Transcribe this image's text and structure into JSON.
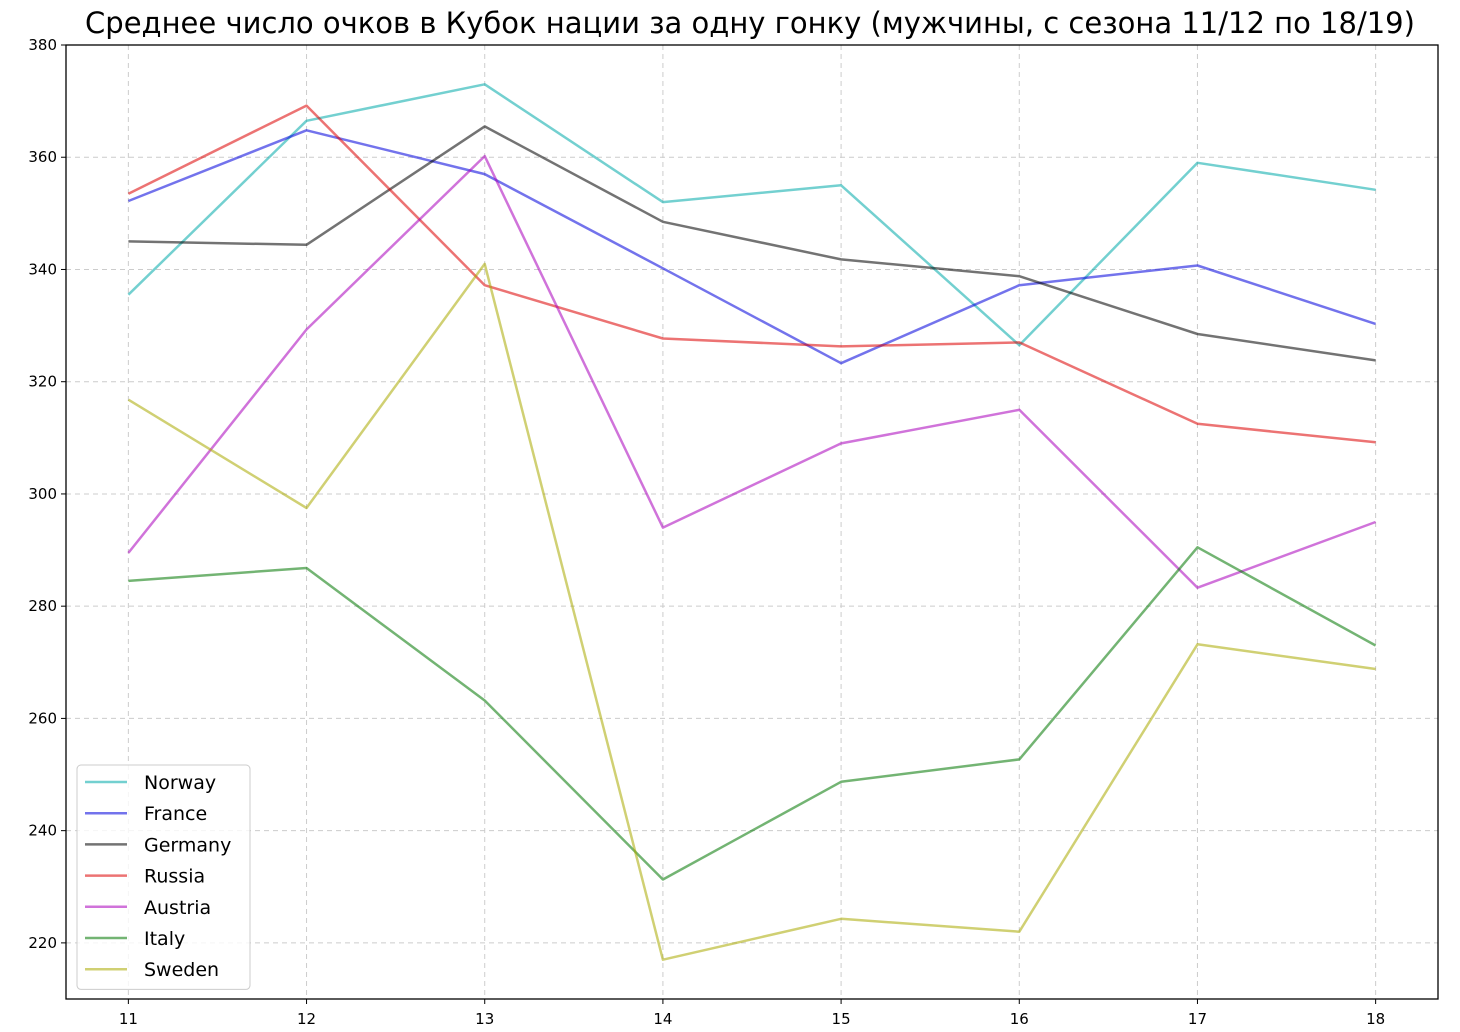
{
  "chart_data": {
    "type": "line",
    "title": "Среднее число очков в Кубок нации за одну гонку (мужчины, с сезона 11/12 по 18/19)",
    "xlabel": "",
    "ylabel": "",
    "x": [
      11,
      12,
      13,
      14,
      15,
      16,
      17,
      18
    ],
    "xlim": [
      10.65,
      18.35
    ],
    "ylim": [
      210,
      380
    ],
    "yticks": [
      220,
      240,
      260,
      280,
      300,
      320,
      340,
      360,
      380
    ],
    "grid": true,
    "legend_position": "lower-left",
    "series": [
      {
        "name": "Norway",
        "color": "#00aaaa",
        "values": [
          335.5,
          366.5,
          373.0,
          352.0,
          355.0,
          326.5,
          359.0,
          354.2
        ]
      },
      {
        "name": "France",
        "color": "#0000dd",
        "values": [
          352.2,
          364.8,
          357.0,
          340.2,
          323.3,
          337.2,
          340.7,
          330.3
        ]
      },
      {
        "name": "Germany",
        "color": "#000000",
        "values": [
          345.0,
          344.4,
          365.5,
          348.5,
          341.8,
          338.8,
          328.5,
          323.8
        ]
      },
      {
        "name": "Russia",
        "color": "#dd0000",
        "values": [
          353.5,
          369.2,
          337.2,
          327.7,
          326.3,
          327.0,
          312.5,
          309.2
        ]
      },
      {
        "name": "Austria",
        "color": "#aa00bb",
        "values": [
          289.5,
          329.3,
          360.2,
          294.0,
          309.0,
          315.0,
          283.3,
          295.0
        ]
      },
      {
        "name": "Italy",
        "color": "#007700",
        "values": [
          284.5,
          286.8,
          263.2,
          231.3,
          248.7,
          252.7,
          290.5,
          273.0
        ]
      },
      {
        "name": "Sweden",
        "color": "#aaaa00",
        "values": [
          316.8,
          297.5,
          341.0,
          217.0,
          224.3,
          222.0,
          273.2,
          268.8
        ]
      }
    ]
  }
}
